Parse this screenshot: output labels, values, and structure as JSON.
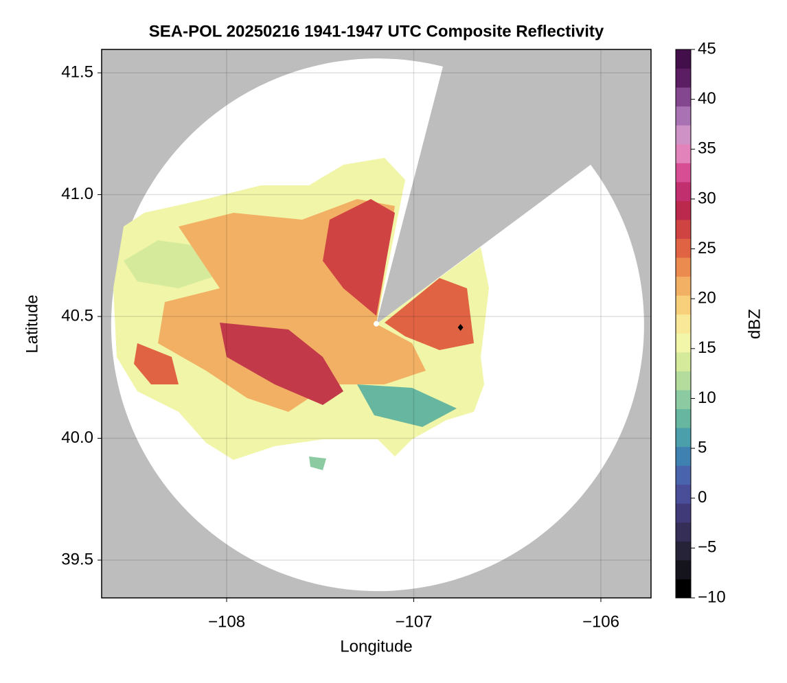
{
  "chart_data": {
    "type": "map",
    "title": "SEA-POL 20250216 1941-1947 UTC Composite Reflectivity",
    "x_label": "Longitude",
    "y_label": "Latitude",
    "xlim": [
      -108.668,
      -105.732
    ],
    "ylim": [
      39.345,
      41.596
    ],
    "xticks": [
      {
        "value": -108,
        "label": "−108"
      },
      {
        "value": -107,
        "label": "−107"
      },
      {
        "value": -106,
        "label": "−106"
      }
    ],
    "yticks": [
      39.5,
      {
        "value": 40.0,
        "label": "40.0"
      },
      40.5,
      {
        "value": 41.0,
        "label": "41.0"
      },
      41.5
    ],
    "grid": true,
    "points": [
      {
        "x": -107.2,
        "y": 40.47,
        "color": "#ffffff"
      },
      {
        "x": -106.75,
        "y": 40.455,
        "color": "#000000"
      }
    ],
    "colorbar": {
      "label": "dBZ",
      "lim": [
        -10,
        45
      ],
      "ticks": [
        {
          "value": -10,
          "label": "−10"
        },
        {
          "value": -5,
          "label": "−5"
        },
        0,
        5,
        10,
        15,
        20,
        25,
        30,
        35,
        40,
        45
      ],
      "colors": [
        "#000000",
        "#15131c",
        "#262238",
        "#352e57",
        "#413a78",
        "#4a4d98",
        "#4a63ad",
        "#3f82b2",
        "#4a9fab",
        "#66b6a0",
        "#8ccaa2",
        "#b4dc9c",
        "#d6ea9c",
        "#f1f6a8",
        "#f9e898",
        "#f8d07c",
        "#f2b064",
        "#ec8b50",
        "#e06344",
        "#d04343",
        "#bb2a4d",
        "#c22f6f",
        "#d84e94",
        "#e383bb",
        "#ce92c6",
        "#a973b3",
        "#83478f",
        "#5c1e62",
        "#420f4a"
      ]
    }
  }
}
